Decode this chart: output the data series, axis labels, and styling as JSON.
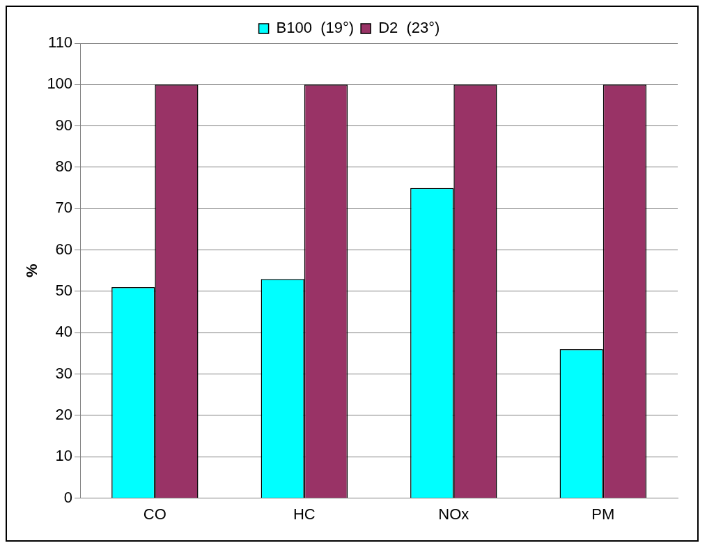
{
  "chart_data": {
    "type": "bar",
    "ylabel": "%",
    "categories": [
      "CO",
      "HC",
      "NOx",
      "PM"
    ],
    "series": [
      {
        "name": "B100  (19°)",
        "color": "#00ffff",
        "values": [
          51,
          53,
          75,
          36
        ]
      },
      {
        "name": "D2  (23°)",
        "color": "#993366",
        "values": [
          100,
          100,
          100,
          100
        ]
      }
    ],
    "ylim": [
      0,
      110
    ],
    "yticks": [
      0,
      10,
      20,
      30,
      40,
      50,
      60,
      70,
      80,
      90,
      100,
      110
    ],
    "grid": "y",
    "legend": "top"
  }
}
